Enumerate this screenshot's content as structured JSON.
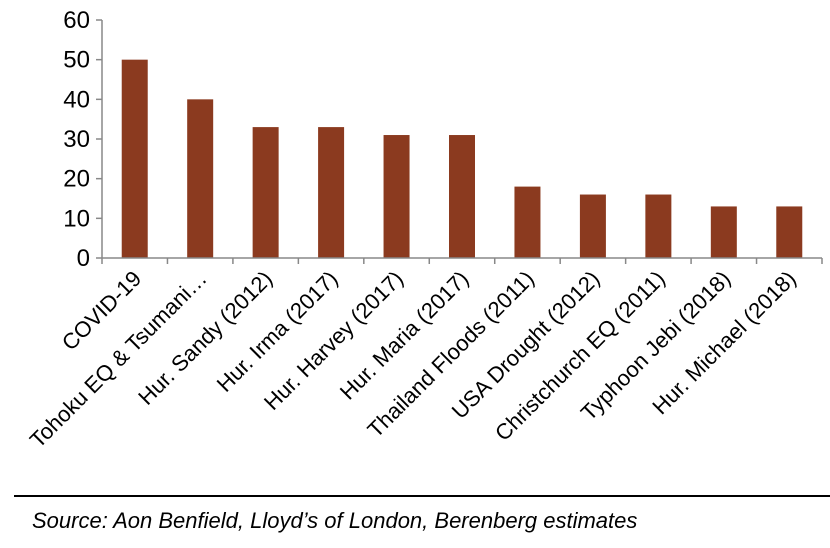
{
  "chart_data": {
    "type": "bar",
    "categories": [
      "COVID-19",
      "Tohoku EQ & Tsumani…",
      "Hur. Sandy (2012)",
      "Hur. Irma (2017)",
      "Hur. Harvey (2017)",
      "Hur. Maria (2017)",
      "Thailand Floods (2011)",
      "USA Drought (2012)",
      "Christchurch EQ (2011)",
      "Typhoon Jebi (2018)",
      "Hur. Michael (2018)"
    ],
    "values": [
      50,
      40,
      33,
      33,
      31,
      31,
      18,
      16,
      16,
      13,
      13
    ],
    "ylim": [
      0,
      60
    ],
    "yticks": [
      0,
      10,
      20,
      30,
      40,
      50,
      60
    ],
    "bar_color": "#8B3A1F",
    "grid": false,
    "legend": "none"
  },
  "source": "Source: Aon Benfield, Lloyd’s of London, Berenberg estimates"
}
